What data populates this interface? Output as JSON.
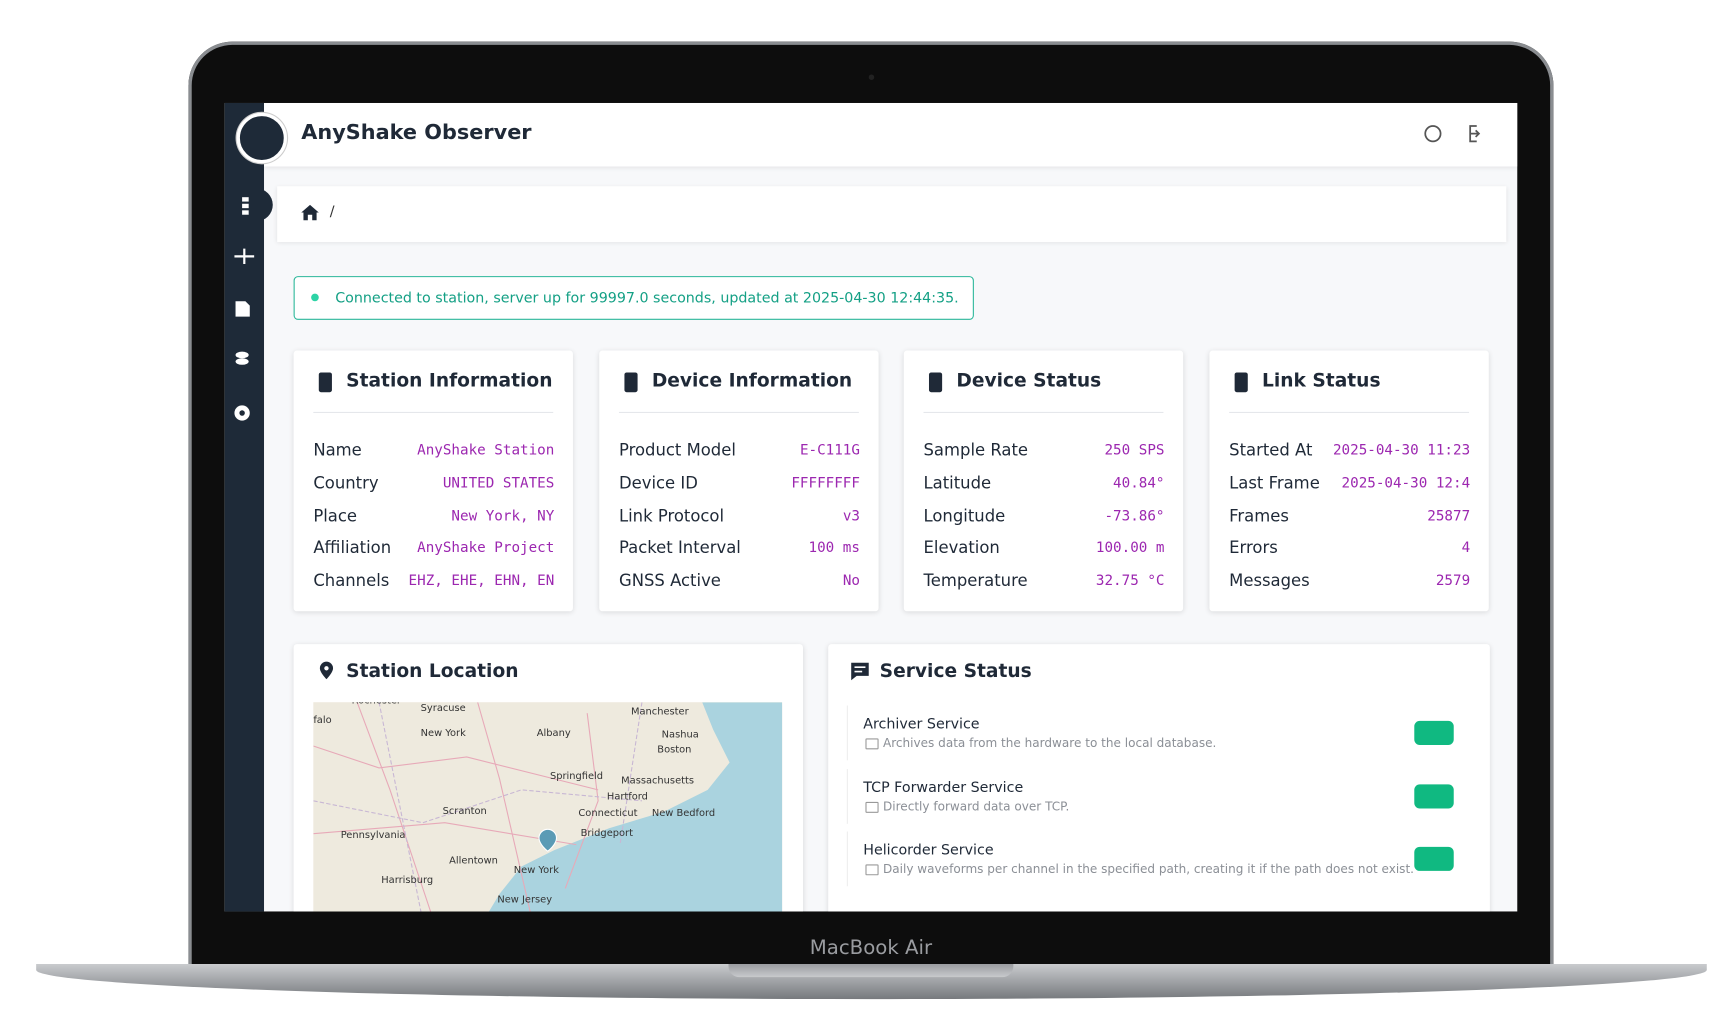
{
  "app": {
    "title": "AnyShake Observer",
    "breadcrumb": "/"
  },
  "alert": "Connected to station, server up for 99997.0 seconds, updated at 2025-04-30 12:44:35.",
  "cards": [
    {
      "title": "Station Information",
      "rows": [
        [
          "Name",
          "AnyShake Station"
        ],
        [
          "Country",
          "UNITED STATES"
        ],
        [
          "Place",
          "New York, NY"
        ],
        [
          "Affiliation",
          "AnyShake Project"
        ],
        [
          "Channels",
          "EHZ, EHE, EHN, EN"
        ]
      ]
    },
    {
      "title": "Device Information",
      "rows": [
        [
          "Product Model",
          "E-C111G"
        ],
        [
          "Device ID",
          "FFFFFFFF"
        ],
        [
          "Link Protocol",
          "v3"
        ],
        [
          "Packet Interval",
          "100 ms"
        ],
        [
          "GNSS Active",
          "No"
        ]
      ]
    },
    {
      "title": "Device Status",
      "rows": [
        [
          "Sample Rate",
          "250 SPS"
        ],
        [
          "Latitude",
          "40.84°"
        ],
        [
          "Longitude",
          "-73.86°"
        ],
        [
          "Elevation",
          "100.00 m"
        ],
        [
          "Temperature",
          "32.75 °C"
        ]
      ]
    },
    {
      "title": "Link Status",
      "rows": [
        [
          "Started At",
          "2025-04-30 11:23"
        ],
        [
          "Last Frame",
          "2025-04-30 12:4"
        ],
        [
          "Frames",
          "25877"
        ],
        [
          "Errors",
          "4"
        ],
        [
          "Messages",
          "2579"
        ]
      ]
    }
  ],
  "location": {
    "title": "Station Location",
    "map_labels": [
      "Rochester",
      "Syracuse",
      "Manchester",
      "falo",
      "New York",
      "Albany",
      "Nashua",
      "Boston",
      "Springfield",
      "Massachusetts",
      "Hartford",
      "Scranton",
      "Connecticut",
      "New Bedford",
      "Pennsylvania",
      "Bridgeport",
      "Allentown",
      "New York",
      "Harrisburg",
      "New Jersey"
    ]
  },
  "services": {
    "title": "Service Status",
    "items": [
      {
        "name": "Archiver Service",
        "description": "Archives data from the hardware to the local database."
      },
      {
        "name": "TCP Forwarder Service",
        "description": "Directly forward data over TCP."
      },
      {
        "name": "Helicorder Service",
        "description": "Daily waveforms per channel in the specified path, creating it if the path does not exist."
      }
    ]
  },
  "device": {
    "brand": "MacBook Air"
  }
}
